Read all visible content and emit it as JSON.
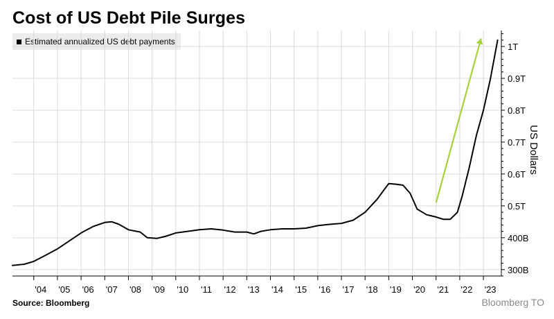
{
  "header": {
    "title": "Cost of US Debt Pile Surges"
  },
  "footer": {
    "source": "Source: Bloomberg",
    "watermark": "Bloomberg TO"
  },
  "colors": {
    "line": "#000000",
    "arrow": "#a6d13a",
    "grid": "#d9d9d9",
    "legend_bg": "#ececec"
  },
  "chart_data": {
    "type": "line",
    "title": "Cost of US Debt Pile Surges",
    "ylabel": "US Dollars",
    "ylim": [
      280,
      1050
    ],
    "xlim": [
      2003.1,
      2023.7
    ],
    "grid": true,
    "legend_position": "top-left",
    "y_ticks": [
      {
        "value": 300,
        "label": "300B"
      },
      {
        "value": 400,
        "label": "400B"
      },
      {
        "value": 500,
        "label": "0.5T"
      },
      {
        "value": 600,
        "label": "0.6T"
      },
      {
        "value": 700,
        "label": "0.7T"
      },
      {
        "value": 800,
        "label": "0.8T"
      },
      {
        "value": 900,
        "label": "0.9T"
      },
      {
        "value": 1000,
        "label": "1T"
      }
    ],
    "x_ticks": [
      {
        "value": 2004,
        "label": "'04"
      },
      {
        "value": 2005,
        "label": "'05"
      },
      {
        "value": 2006,
        "label": "'06"
      },
      {
        "value": 2007,
        "label": "'07"
      },
      {
        "value": 2008,
        "label": "'08"
      },
      {
        "value": 2009,
        "label": "'09"
      },
      {
        "value": 2010,
        "label": "'10"
      },
      {
        "value": 2011,
        "label": "'11"
      },
      {
        "value": 2012,
        "label": "'12"
      },
      {
        "value": 2013,
        "label": "'13"
      },
      {
        "value": 2014,
        "label": "'14"
      },
      {
        "value": 2015,
        "label": "'15"
      },
      {
        "value": 2016,
        "label": "'16"
      },
      {
        "value": 2017,
        "label": "'17"
      },
      {
        "value": 2018,
        "label": "'18"
      },
      {
        "value": 2019,
        "label": "'19"
      },
      {
        "value": 2020,
        "label": "'20"
      },
      {
        "value": 2021,
        "label": "'21"
      },
      {
        "value": 2022,
        "label": "'22"
      },
      {
        "value": 2023,
        "label": "'23"
      }
    ],
    "series": [
      {
        "name": "Estimated annualized US debt payments",
        "color": "#000000",
        "x": [
          2003.1,
          2003.6,
          2004.0,
          2004.5,
          2005.0,
          2005.5,
          2006.0,
          2006.5,
          2007.0,
          2007.3,
          2007.6,
          2008.0,
          2008.5,
          2008.8,
          2009.2,
          2009.6,
          2010.0,
          2010.5,
          2011.0,
          2011.5,
          2012.0,
          2012.5,
          2013.0,
          2013.3,
          2013.6,
          2014.0,
          2014.5,
          2015.0,
          2015.5,
          2016.0,
          2016.5,
          2017.0,
          2017.5,
          2018.0,
          2018.5,
          2018.8,
          2019.0,
          2019.3,
          2019.6,
          2019.9,
          2020.2,
          2020.6,
          2021.0,
          2021.3,
          2021.6,
          2021.9,
          2022.1,
          2022.4,
          2022.7,
          2023.0,
          2023.3,
          2023.6
        ],
        "y": [
          313,
          317,
          326,
          345,
          365,
          390,
          415,
          435,
          448,
          450,
          442,
          425,
          418,
          400,
          398,
          405,
          415,
          420,
          425,
          428,
          424,
          418,
          418,
          412,
          420,
          425,
          428,
          428,
          430,
          438,
          442,
          445,
          455,
          480,
          520,
          550,
          570,
          568,
          565,
          540,
          490,
          472,
          465,
          458,
          458,
          480,
          530,
          620,
          720,
          800,
          900,
          1020
        ]
      }
    ],
    "annotations": [
      {
        "type": "arrow",
        "color": "#a6d13a",
        "from": [
          2021.0,
          510
        ],
        "to": [
          2022.9,
          1025
        ]
      }
    ]
  }
}
